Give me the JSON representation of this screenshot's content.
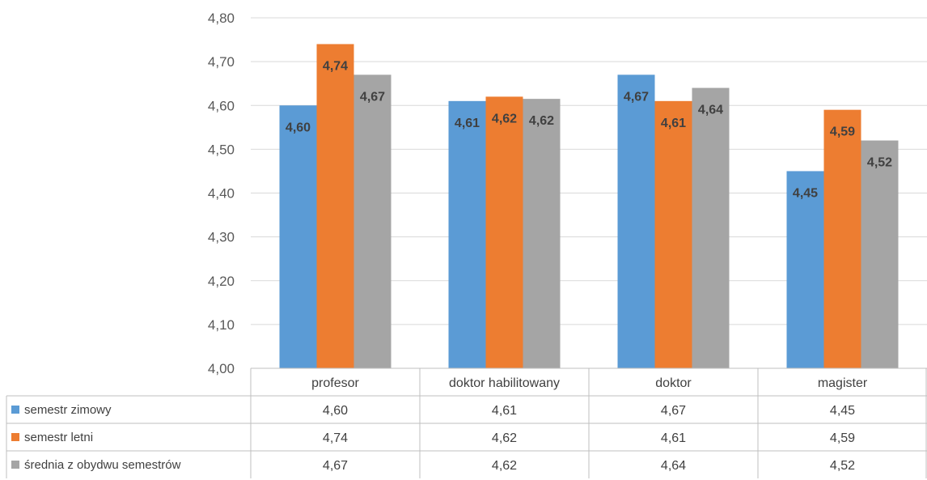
{
  "chart_data": {
    "type": "bar",
    "categories": [
      "profesor",
      "doktor habilitowany",
      "doktor",
      "magister"
    ],
    "series": [
      {
        "name": "semestr zimowy",
        "values": [
          4.6,
          4.61,
          4.67,
          4.45
        ],
        "labels": [
          "4,60",
          "4,61",
          "4,67",
          "4,45"
        ],
        "color": "#5B9BD5"
      },
      {
        "name": "semestr letni",
        "values": [
          4.74,
          4.62,
          4.61,
          4.59
        ],
        "labels": [
          "4,74",
          "4,62",
          "4,61",
          "4,59"
        ],
        "color": "#ED7D31"
      },
      {
        "name": "średnia z obydwu semestrów",
        "values": [
          4.67,
          4.615,
          4.64,
          4.52
        ],
        "labels": [
          "4,67",
          "4,62",
          "4,64",
          "4,52"
        ],
        "color": "#A5A5A5"
      }
    ],
    "ylim": [
      4.0,
      4.8
    ],
    "yticks": [
      4.0,
      4.1,
      4.2,
      4.3,
      4.4,
      4.5,
      4.6,
      4.7,
      4.8
    ],
    "ytick_labels": [
      "4,00",
      "4,10",
      "4,20",
      "4,30",
      "4,40",
      "4,50",
      "4,60",
      "4,70",
      "4,80"
    ],
    "grid": true,
    "legend": "data-table-left",
    "data_table": true
  }
}
